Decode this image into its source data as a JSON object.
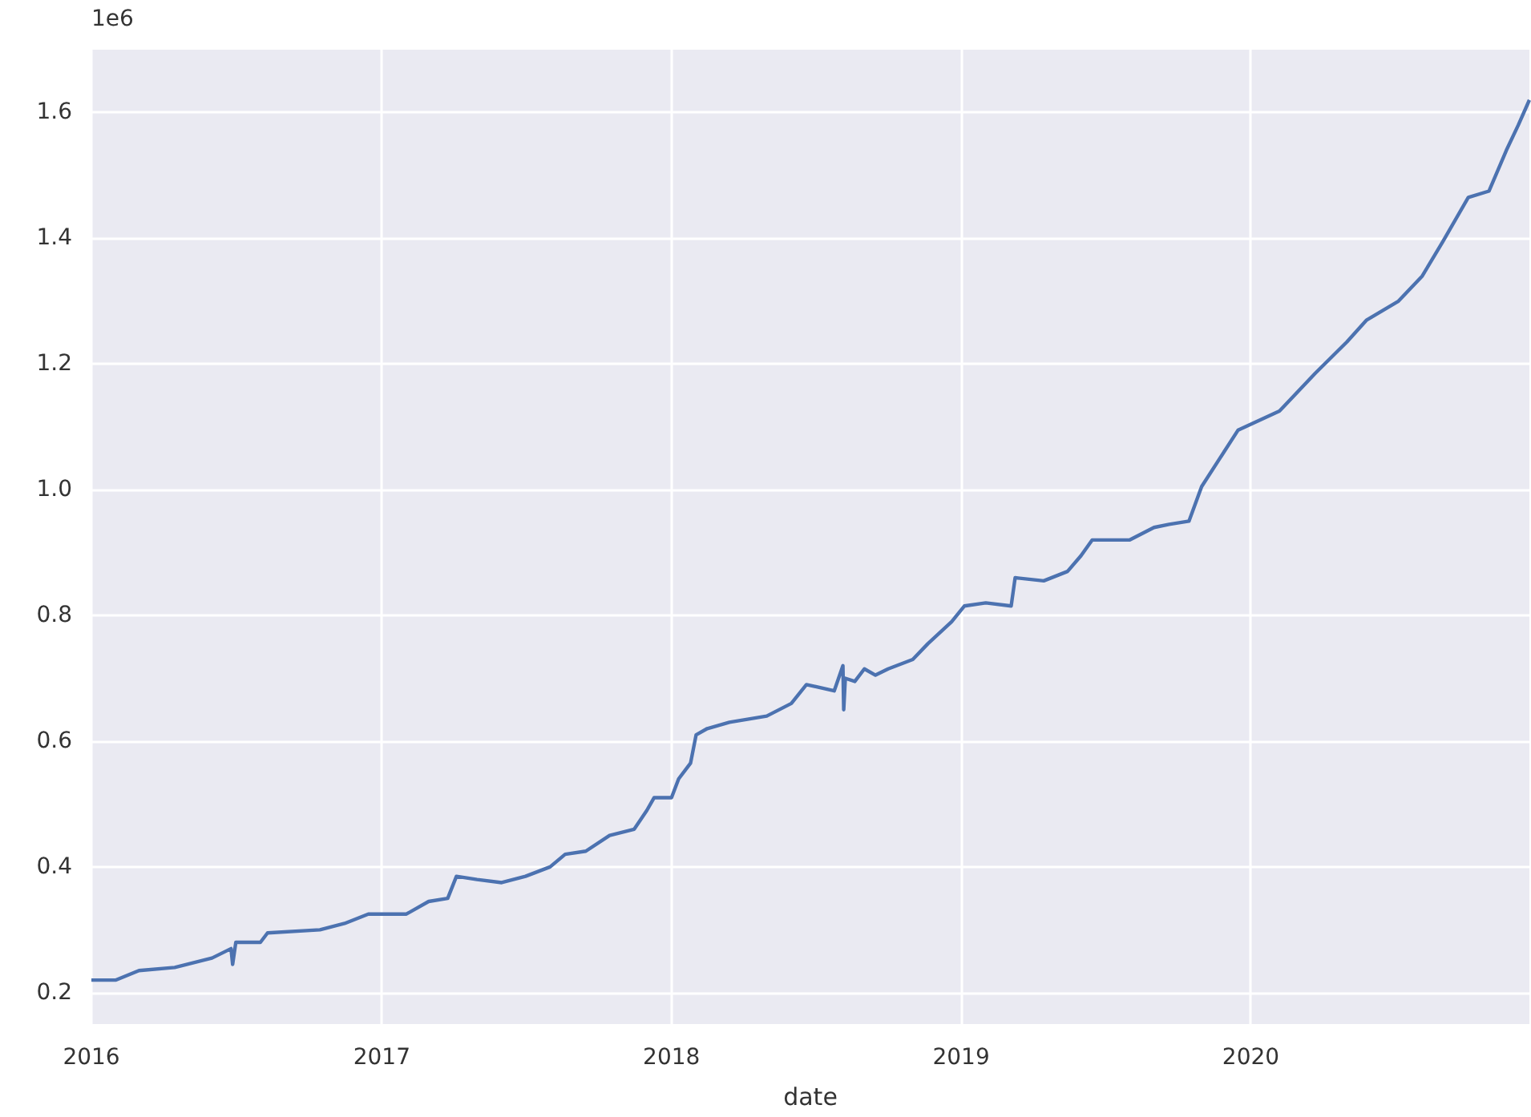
{
  "chart_data": {
    "type": "line",
    "xlabel": "date",
    "annotations": [
      "1e6"
    ],
    "x": [
      "2016-01-01",
      "2016-02-01",
      "2016-03-01",
      "2016-04-15",
      "2016-06-01",
      "2016-06-25",
      "2016-06-27",
      "2016-07-01",
      "2016-08-01",
      "2016-08-10",
      "2016-10-15",
      "2016-11-15",
      "2016-12-15",
      "2017-02-01",
      "2017-03-01",
      "2017-03-25",
      "2017-04-05",
      "2017-05-01",
      "2017-06-01",
      "2017-07-01",
      "2017-08-01",
      "2017-08-20",
      "2017-09-15",
      "2017-10-15",
      "2017-11-15",
      "2017-12-01",
      "2017-12-10",
      "2018-01-01",
      "2018-01-10",
      "2018-01-25",
      "2018-02-01",
      "2018-02-15",
      "2018-03-15",
      "2018-05-01",
      "2018-06-01",
      "2018-06-20",
      "2018-07-25",
      "2018-08-05",
      "2018-08-06",
      "2018-08-08",
      "2018-08-20",
      "2018-09-01",
      "2018-09-15",
      "2018-10-01",
      "2018-11-01",
      "2018-11-20",
      "2018-12-20",
      "2019-01-05",
      "2019-02-01",
      "2019-03-05",
      "2019-03-10",
      "2019-04-15",
      "2019-05-15",
      "2019-06-01",
      "2019-06-15",
      "2019-08-01",
      "2019-09-01",
      "2019-09-20",
      "2019-10-15",
      "2019-10-31",
      "2019-12-16",
      "2020-02-06",
      "2020-03-22",
      "2020-05-01",
      "2020-05-26",
      "2020-07-05",
      "2020-08-04",
      "2020-08-30",
      "2020-10-01",
      "2020-10-27",
      "2020-11-18",
      "2020-12-03",
      "2020-12-17"
    ],
    "series": [
      {
        "color": "#4c72b0",
        "values": [
          0.22,
          0.22,
          0.235,
          0.24,
          0.255,
          0.27,
          0.245,
          0.28,
          0.28,
          0.295,
          0.3,
          0.31,
          0.325,
          0.325,
          0.345,
          0.35,
          0.385,
          0.38,
          0.375,
          0.385,
          0.4,
          0.42,
          0.425,
          0.45,
          0.46,
          0.49,
          0.51,
          0.51,
          0.54,
          0.565,
          0.61,
          0.62,
          0.63,
          0.64,
          0.66,
          0.69,
          0.68,
          0.72,
          0.65,
          0.7,
          0.695,
          0.715,
          0.705,
          0.715,
          0.73,
          0.755,
          0.79,
          0.815,
          0.82,
          0.815,
          0.86,
          0.855,
          0.87,
          0.895,
          0.92,
          0.92,
          0.94,
          0.945,
          0.95,
          1.005,
          1.095,
          1.125,
          1.185,
          1.235,
          1.27,
          1.3,
          1.34,
          1.395,
          1.465,
          1.475,
          1.54,
          1.58,
          1.62
        ]
      }
    ],
    "xlim": [
      "2016-01-01",
      "2020-12-17"
    ],
    "xticks": [
      "2016",
      "2017",
      "2018",
      "2019",
      "2020"
    ],
    "ylim": [
      0.15,
      1.7
    ],
    "yticks": [
      0.2,
      0.4,
      0.6,
      0.8,
      {
        "value": 1.0,
        "label": "1.0"
      },
      1.2,
      1.4,
      1.6
    ],
    "grid": true,
    "marker": "none",
    "line_style": "solid"
  }
}
